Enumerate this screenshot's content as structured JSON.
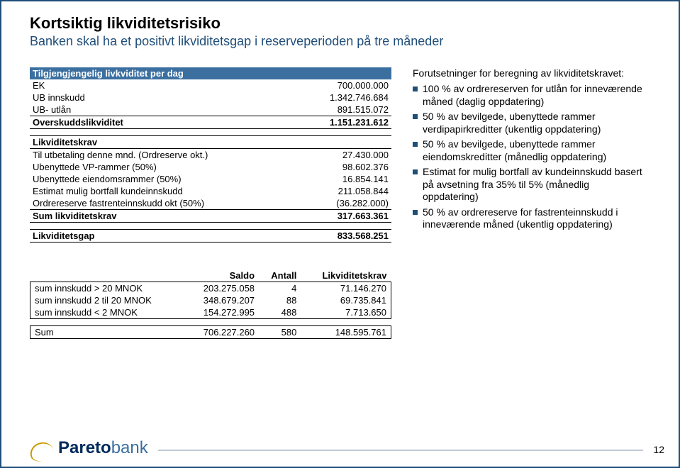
{
  "title": "Kortsiktig likviditetsrisiko",
  "subtitle": "Banken skal ha et positivt likviditetsgap i reserveperioden på tre måneder",
  "table1": {
    "header": "Tilgjengjengelig livkviditet per dag",
    "rows": [
      {
        "label": "EK",
        "value": "700.000.000"
      },
      {
        "label": "UB innskudd",
        "value": "1.342.746.684"
      },
      {
        "label": "UB- utlån",
        "value": "891.515.072"
      }
    ],
    "overskudd_label": "Overskuddslikviditet",
    "overskudd_value": "1.151.231.612",
    "krav_header": "Likviditetskrav",
    "krav_rows": [
      {
        "label": "Til utbetaling denne mnd. (Ordreserve okt.)",
        "value": "27.430.000"
      },
      {
        "label": "Ubenyttede VP-rammer (50%)",
        "value": "98.602.376"
      },
      {
        "label": "Ubenyttede eiendomsrammer (50%)",
        "value": "16.854.141"
      },
      {
        "label": "Estimat mulig bortfall kundeinnskudd",
        "value": "211.058.844"
      },
      {
        "label": "Ordrereserve fastrenteinnskudd okt (50%)",
        "value": "(36.282.000)"
      }
    ],
    "sum_krav_label": "Sum likviditetskrav",
    "sum_krav_value": "317.663.361",
    "gap_label": "Likviditetsgap",
    "gap_value": "833.568.251"
  },
  "table2": {
    "cols": [
      "",
      "Saldo",
      "Antall",
      "Likviditetskrav"
    ],
    "rows": [
      [
        "sum innskudd > 20 MNOK",
        "203.275.058",
        "4",
        "71.146.270"
      ],
      [
        "sum innskudd 2 til 20 MNOK",
        "348.679.207",
        "88",
        "69.735.841"
      ],
      [
        "sum innskudd < 2 MNOK",
        "154.272.995",
        "488",
        "7.713.650"
      ]
    ],
    "sum": [
      "Sum",
      "706.227.260",
      "580",
      "148.595.761"
    ]
  },
  "assumptions": {
    "title": "Forutsetninger for beregning av likviditetskravet:",
    "items": [
      "100 % av ordrereserven for utlån for inneværende måned (daglig oppdatering)",
      "50 % av bevilgede, ubenyttede rammer verdipapirkreditter (ukentlig oppdatering)",
      "50 % av bevilgede, ubenyttede rammer eiendomskreditter (månedlig oppdatering)",
      "Estimat for mulig bortfall av kundeinnskudd basert på avsetning fra 35% til 5% (månedlig oppdatering)",
      "50 % av ordrereserve for fastrenteinnskudd i inneværende måned (ukentlig oppdatering)"
    ]
  },
  "logo_main": "Pareto",
  "logo_sub": "bank",
  "page_number": "12"
}
